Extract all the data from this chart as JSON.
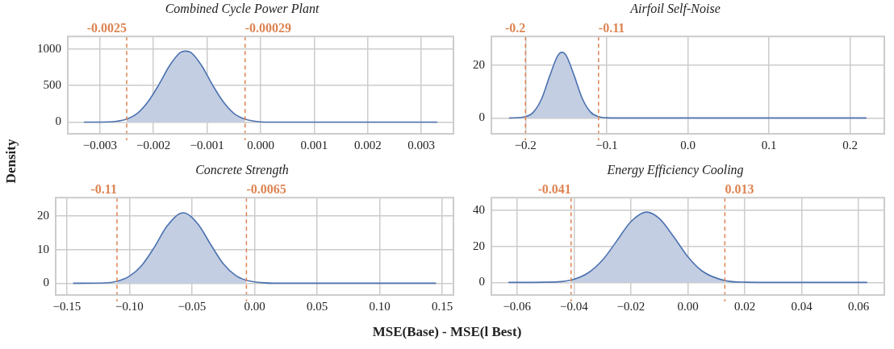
{
  "chart_data": [
    {
      "type": "line",
      "title": "Combined Cycle Power Plant",
      "ylabel": "Density",
      "xlim": [
        -0.0036,
        0.0036
      ],
      "ylim": [
        -160,
        1170
      ],
      "xticks": [
        {
          "value": -0.003,
          "label": "−0.003"
        },
        {
          "value": -0.002,
          "label": "−0.002"
        },
        {
          "value": -0.001,
          "label": "−0.001"
        },
        {
          "value": 0,
          "label": "0.000"
        },
        {
          "value": 0.001,
          "label": "0.001"
        },
        {
          "value": 0.002,
          "label": "0.002"
        },
        {
          "value": 0.003,
          "label": "0.003"
        }
      ],
      "yticks": [
        0,
        500,
        1000
      ],
      "grid": true,
      "marker": "none",
      "series": [
        {
          "type": "line",
          "color": "#4c72b0",
          "x": [
            -0.0033,
            -0.003,
            -0.0027,
            -0.0025,
            -0.0023,
            -0.0021,
            -0.0019,
            -0.0017,
            -0.0015,
            -0.0014,
            -0.0013,
            -0.0011,
            -0.0009,
            -0.0007,
            -0.0005,
            -0.00029,
            -0.0001,
            0.0001,
            0.0005,
            0.0033
          ],
          "values": [
            0,
            0,
            10,
            40,
            120,
            280,
            510,
            770,
            950,
            970,
            950,
            770,
            510,
            280,
            120,
            40,
            10,
            0,
            0,
            0
          ]
        },
        {
          "type": "area",
          "color": "#c3cee2",
          "x": [
            -0.0025,
            -0.0023,
            -0.0021,
            -0.0019,
            -0.0017,
            -0.0015,
            -0.0014,
            -0.0013,
            -0.0011,
            -0.0009,
            -0.0007,
            -0.0005,
            -0.00029
          ],
          "values": [
            40,
            120,
            280,
            510,
            770,
            950,
            970,
            950,
            770,
            510,
            280,
            120,
            40
          ]
        }
      ],
      "ref_lines": [
        {
          "axis": "x",
          "value": -0.0025,
          "label": "-0.0025",
          "color": "#dd8452",
          "line_style": "dashed"
        },
        {
          "axis": "x",
          "value": -0.00029,
          "label": "-0.00029",
          "color": "#dd8452",
          "line_style": "dashed"
        }
      ]
    },
    {
      "type": "line",
      "title": "Airfoil Self-Noise",
      "xlim": [
        -0.242,
        0.242
      ],
      "ylim": [
        -6,
        31
      ],
      "xticks": [
        {
          "value": -0.2,
          "label": "−0.2"
        },
        {
          "value": -0.1,
          "label": "−0.1"
        },
        {
          "value": 0,
          "label": "0.0"
        },
        {
          "value": 0.1,
          "label": "0.1"
        },
        {
          "value": 0.2,
          "label": "0.2"
        }
      ],
      "yticks": [
        0,
        20
      ],
      "grid": true,
      "marker": "none",
      "series": [
        {
          "type": "line",
          "color": "#4c72b0",
          "x": [
            -0.22,
            -0.2,
            -0.19,
            -0.18,
            -0.17,
            -0.16,
            -0.155,
            -0.15,
            -0.14,
            -0.13,
            -0.12,
            -0.11,
            -0.1,
            -0.09,
            0,
            0.22
          ],
          "values": [
            0,
            0.5,
            2.3,
            7.4,
            16.1,
            23.8,
            25,
            23.8,
            16.1,
            7.4,
            2.3,
            0.5,
            0.1,
            0,
            0,
            0
          ]
        },
        {
          "type": "area",
          "color": "#c3cee2",
          "x": [
            -0.2,
            -0.19,
            -0.18,
            -0.17,
            -0.16,
            -0.155,
            -0.15,
            -0.14,
            -0.13,
            -0.12,
            -0.11
          ],
          "values": [
            0.5,
            2.3,
            7.4,
            16.1,
            23.8,
            25,
            23.8,
            16.1,
            7.4,
            2.3,
            0.5
          ]
        }
      ],
      "ref_lines": [
        {
          "axis": "x",
          "value": -0.2,
          "label": "-0.2",
          "color": "#dd8452",
          "line_style": "dashed"
        },
        {
          "axis": "x",
          "value": -0.11,
          "label": "-0.11",
          "color": "#dd8452",
          "line_style": "dashed"
        }
      ]
    },
    {
      "type": "line",
      "title": "Concrete Strength",
      "xlabel": "MSE(Base) - MSE(l Best)",
      "xlim": [
        -0.159,
        0.159
      ],
      "ylim": [
        -3.5,
        25.5
      ],
      "xticks": [
        {
          "value": -0.15,
          "label": "−0.15"
        },
        {
          "value": -0.1,
          "label": "−0.10"
        },
        {
          "value": -0.05,
          "label": "−0.05"
        },
        {
          "value": 0,
          "label": "0.00"
        },
        {
          "value": 0.05,
          "label": "0.05"
        },
        {
          "value": 0.1,
          "label": "0.10"
        },
        {
          "value": 0.15,
          "label": "0.15"
        }
      ],
      "yticks": [
        0,
        10,
        20
      ],
      "grid": true,
      "marker": "none",
      "series": [
        {
          "type": "line",
          "color": "#4c72b0",
          "x": [
            -0.145,
            -0.12,
            -0.11,
            -0.1,
            -0.09,
            -0.08,
            -0.07,
            -0.057,
            -0.045,
            -0.035,
            -0.025,
            -0.015,
            -0.0065,
            0.005,
            0.02,
            0.145
          ],
          "values": [
            0,
            0.1,
            0.6,
            2.1,
            5.4,
            10.8,
            17,
            21,
            17.5,
            11.5,
            5.8,
            2.3,
            0.9,
            0.2,
            0,
            0
          ]
        },
        {
          "type": "area",
          "color": "#c3cee2",
          "x": [
            -0.11,
            -0.1,
            -0.09,
            -0.08,
            -0.07,
            -0.057,
            -0.045,
            -0.035,
            -0.025,
            -0.015,
            -0.0065
          ],
          "values": [
            0.6,
            2.1,
            5.4,
            10.8,
            17,
            21,
            17.5,
            11.5,
            5.8,
            2.3,
            0.9
          ]
        }
      ],
      "ref_lines": [
        {
          "axis": "x",
          "value": -0.11,
          "label": "-0.11",
          "color": "#dd8452",
          "line_style": "dashed"
        },
        {
          "axis": "x",
          "value": -0.0065,
          "label": "-0.0065",
          "color": "#dd8452",
          "line_style": "dashed"
        }
      ]
    },
    {
      "type": "line",
      "title": "Energy Efficiency Cooling",
      "xlim": [
        -0.069,
        0.069
      ],
      "ylim": [
        -7,
        47
      ],
      "xticks": [
        {
          "value": -0.06,
          "label": "−0.06"
        },
        {
          "value": -0.04,
          "label": "−0.04"
        },
        {
          "value": -0.02,
          "label": "−0.02"
        },
        {
          "value": 0,
          "label": "0.00"
        },
        {
          "value": 0.02,
          "label": "0.02"
        },
        {
          "value": 0.04,
          "label": "0.04"
        },
        {
          "value": 0.06,
          "label": "0.06"
        }
      ],
      "yticks": [
        0,
        20,
        40
      ],
      "grid": true,
      "marker": "none",
      "series": [
        {
          "type": "line",
          "color": "#4c72b0",
          "x": [
            -0.063,
            -0.05,
            -0.041,
            -0.035,
            -0.03,
            -0.025,
            -0.02,
            -0.0145,
            -0.01,
            -0.005,
            0,
            0.005,
            0.013,
            0.02,
            0.03,
            0.063
          ],
          "values": [
            0,
            0.1,
            1.3,
            5.3,
            12.3,
            22.9,
            33.7,
            39,
            35.4,
            25.4,
            14.2,
            6.3,
            1,
            0.1,
            0,
            0
          ]
        },
        {
          "type": "area",
          "color": "#c3cee2",
          "x": [
            -0.041,
            -0.035,
            -0.03,
            -0.025,
            -0.02,
            -0.0145,
            -0.01,
            -0.005,
            0,
            0.005,
            0.013
          ],
          "values": [
            1.3,
            5.3,
            12.3,
            22.9,
            33.7,
            39,
            35.4,
            25.4,
            14.2,
            6.3,
            1
          ]
        }
      ],
      "ref_lines": [
        {
          "axis": "x",
          "value": -0.041,
          "label": "-0.041",
          "color": "#dd8452",
          "line_style": "dashed"
        },
        {
          "axis": "x",
          "value": 0.013,
          "label": "0.013",
          "color": "#dd8452",
          "line_style": "dashed"
        }
      ]
    }
  ]
}
